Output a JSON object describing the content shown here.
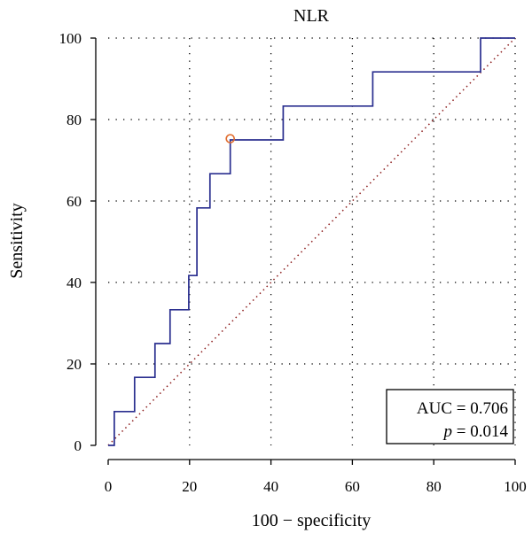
{
  "chart_data": {
    "type": "line",
    "title": "NLR",
    "xlabel": "100 − specificity",
    "ylabel": "Sensitivity",
    "xlim": [
      0,
      100
    ],
    "ylim": [
      0,
      100
    ],
    "xticks": [
      0,
      20,
      40,
      60,
      80,
      100
    ],
    "yticks": [
      0,
      20,
      40,
      60,
      80,
      100
    ],
    "grid": true,
    "series": [
      {
        "kind": "roc-step",
        "color": "#2a2f8f",
        "x": [
          0,
          1.5,
          1.5,
          6.5,
          6.5,
          11.5,
          11.5,
          15.2,
          15.2,
          19.8,
          19.8,
          21.8,
          21.8,
          25,
          25,
          30,
          30,
          43,
          43,
          65,
          65,
          91.5,
          91.5,
          100
        ],
        "y": [
          0,
          0,
          8.3,
          8.3,
          16.7,
          16.7,
          25,
          25,
          33.3,
          33.3,
          41.7,
          41.7,
          58.3,
          58.3,
          66.7,
          66.7,
          75,
          75,
          83.3,
          83.3,
          91.7,
          91.7,
          100,
          100
        ]
      },
      {
        "kind": "reference-diagonal",
        "color": "#8b1a1a",
        "x": [
          0,
          100
        ],
        "y": [
          0,
          100
        ]
      }
    ],
    "marker": {
      "x": 30,
      "y": 75.3,
      "color": "#e06a2a"
    },
    "annotation": {
      "auc_line": "AUC = 0.706",
      "p_symbol": "p",
      "p_rest": " = 0.014",
      "position": "bottom-right"
    }
  }
}
